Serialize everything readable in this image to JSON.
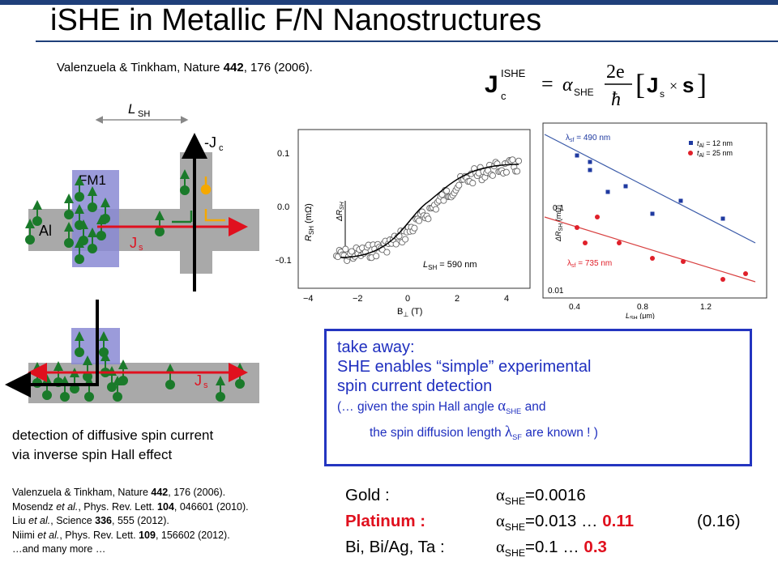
{
  "title": "iSHE in Metallic F/N Nanostructures",
  "ref_top": {
    "prefix": "Valenzuela & Tinkham, Nature ",
    "vol": "442",
    "rest": ", 176 (2006)."
  },
  "formula": {
    "lhs": "J",
    "lhs_sup": "ISHE",
    "lhs_sub": "c",
    "eq": "=",
    "alpha": "α",
    "alpha_sub": "SHE",
    "num": "2e",
    "den": "ħ",
    "js": "J",
    "js_sub": "s",
    "times": "×",
    "s": "s"
  },
  "device_top": {
    "lsh_label": "L",
    "lsh_sub": "SH",
    "fm1_label": "FM1",
    "al_label": "Al",
    "js_label": "J",
    "js_sub": "s",
    "jc_label": "-J",
    "jc_sub": "c"
  },
  "device_bottom": {
    "js_label": "J",
    "js_sub": "s"
  },
  "caption": [
    "detection of diffusive spin current",
    "via inverse spin Hall effect"
  ],
  "references": [
    {
      "a": "Valenzuela & Tinkham, Nature ",
      "b": "442",
      "c": ", 176 (2006)."
    },
    {
      "a": "Mosendz ",
      "i": "et al.",
      "a2": ", Phys. Rev. Lett. ",
      "b": "104",
      "c": ", 046601 (2010)."
    },
    {
      "a": "Liu ",
      "i": "et al.",
      "a2": ", Science ",
      "b": "336",
      "c": ", 555 (2012)."
    },
    {
      "a": "Niimi ",
      "i": "et al.",
      "a2": ", Phys. Rev. Lett. ",
      "b": "109",
      "c": ", 156602 (2012)."
    },
    {
      "a": "…and many more …"
    }
  ],
  "plot_left": {
    "ylabel": "R",
    "ylabel_sub": "SH",
    "ylabel_unit": " (mΩ)",
    "xlabel": "B",
    "xlabel_sub": "⊥",
    "xlabel_unit": " (T)",
    "yticks": [
      "0.1",
      "0.0",
      "−0.1"
    ],
    "xticks": [
      "−4",
      "−2",
      "0",
      "2",
      "4"
    ],
    "delta_label": "ΔR",
    "delta_sub": "SH",
    "legend": "L",
    "legend_sub": "SH",
    "legend_val": " = 590 nm"
  },
  "plot_right": {
    "ylabel": "ΔR",
    "ylabel_sub": "SH",
    "ylabel_unit": " (mΩ)",
    "xlabel": "L",
    "xlabel_sub": "SH",
    "xlabel_unit": " (μm)",
    "yticks": [
      "0.1",
      "0.01"
    ],
    "xticks": [
      "0.4",
      "0.8",
      "1.2"
    ],
    "lambda_blue": "λ",
    "lambda_blue_sub": "sf",
    "lambda_blue_val": " = 490 nm",
    "lambda_red": "λ",
    "lambda_red_sub": "sf",
    "lambda_red_val": " = 735 nm",
    "legend1": "t",
    "legend1_sub": "Al",
    "legend1_val": " = 12 nm",
    "legend2": "t",
    "legend2_sub": "Al",
    "legend2_val": " = 25 nm",
    "colors": {
      "blue": "#1f3aa0",
      "red": "#e0202a"
    }
  },
  "takeaway": {
    "line1": "take away:",
    "line2": "SHE enables “simple” experimental",
    "line3": "spin current detection",
    "line4a": "(… given the spin Hall angle ",
    "line4_alpha": "α",
    "line4_sub": "SHE",
    "line4b": " and",
    "line5a": "the spin diffusion length ",
    "line5_lambda": "λ",
    "line5_sub": "SF",
    "line5b": " are known ! )"
  },
  "materials": [
    {
      "name": "Gold :",
      "alpha": "α",
      "sub": "SHE",
      "val": "=0.0016"
    },
    {
      "name": "Platinum :",
      "alpha": "α",
      "sub": "SHE",
      "val": "=0.013 … ",
      "red_val": "0.11",
      "extra": "(0.16)"
    },
    {
      "name": "Bi, Bi/Ag, Ta :",
      "alpha": "α",
      "sub": "SHE",
      "val": "=0.1 … ",
      "red_val": "0.3"
    }
  ]
}
